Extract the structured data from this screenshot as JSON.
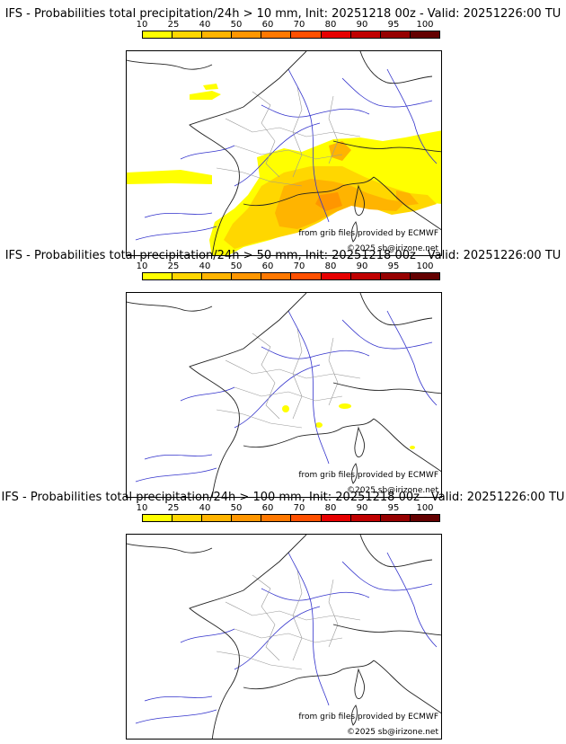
{
  "colorbar": {
    "ticks": [
      "10",
      "25",
      "40",
      "50",
      "60",
      "70",
      "80",
      "90",
      "95",
      "100"
    ],
    "colors": [
      "#ffff00",
      "#ffd700",
      "#ffb400",
      "#ff9600",
      "#ff7800",
      "#ff5000",
      "#e60000",
      "#c00000",
      "#960000",
      "#640000"
    ]
  },
  "credits": {
    "source": "from grib files provided by ECMWF",
    "copyright": "©2025 sb@irizone.net"
  },
  "panels": [
    {
      "title": "IFS - Probabilities total precipitation/24h > 10 mm, Init: 20251218 00z - Valid: 20251226:00 TU"
    },
    {
      "title": "IFS - Probabilities total precipitation/24h > 50 mm, Init: 20251218 00z - Valid: 20251226:00 TU"
    },
    {
      "title": "IFS - Probabilities total precipitation/24h > 100 mm, Init: 20251218 00z - Valid: 20251226:00 TU"
    }
  ]
}
